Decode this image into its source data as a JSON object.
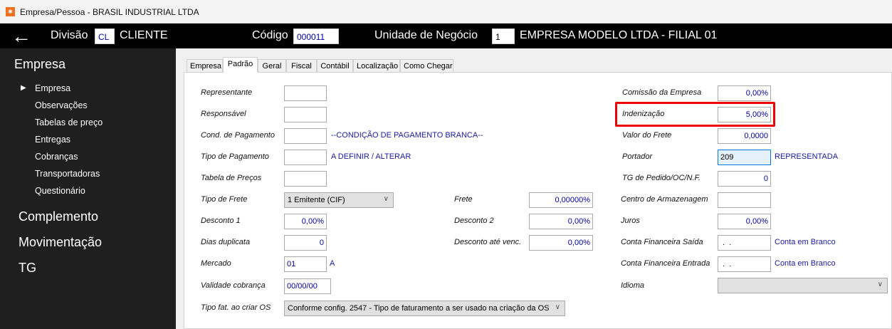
{
  "window": {
    "title": "Empresa/Pessoa - BRASIL INDUSTRIAL  LTDA"
  },
  "header": {
    "divisao_label": "Divisão",
    "divisao_code": "CL",
    "divisao_name": "CLIENTE",
    "codigo_label": "Código",
    "codigo_value": "000011",
    "unidade_label": "Unidade de Negócio",
    "unidade_code": "1",
    "unidade_name": "EMPRESA MODELO LTDA - FILIAL 01"
  },
  "sidebar": {
    "section": "Empresa",
    "items": [
      {
        "label": "Empresa",
        "active": true
      },
      {
        "label": "Observações"
      },
      {
        "label": "Tabelas de preço"
      },
      {
        "label": "Entregas"
      },
      {
        "label": "Cobranças"
      },
      {
        "label": "Transportadoras"
      },
      {
        "label": "Questionário"
      }
    ],
    "sections": [
      "Complemento",
      "Movimentação",
      "TG"
    ]
  },
  "tabs": [
    "Empresa",
    "Padrão",
    "Geral",
    "Fiscal",
    "Contábil",
    "Localização",
    "Como Chegar"
  ],
  "active_tab": "Padrão",
  "form": {
    "left": [
      {
        "label": "Representante",
        "value": ""
      },
      {
        "label": "Responsável",
        "value": ""
      },
      {
        "label": "Cond. de Pagamento",
        "value": "",
        "desc": "--CONDIÇÃO DE PAGAMENTO BRANCA--"
      },
      {
        "label": "Tipo de Pagamento",
        "value": "",
        "desc": "A DEFINIR / ALTERAR"
      },
      {
        "label": "Tabela de Preços",
        "value": ""
      },
      {
        "label": "Tipo de Frete",
        "value": "1 Emitente (CIF)"
      },
      {
        "label": "Desconto 1",
        "value": "0,00%"
      },
      {
        "label": "Dias duplicata",
        "value": "0"
      },
      {
        "label": "Mercado",
        "value": "01",
        "desc": "A"
      },
      {
        "label": "Validade cobrança",
        "value": "00/00/00"
      },
      {
        "label": "Tipo fat. ao criar OS",
        "value": "Conforme config. 2547 - Tipo de faturamento a ser usado na criação da OS"
      }
    ],
    "middle": [
      {
        "label": "Frete",
        "value": "0,00000%"
      },
      {
        "label": "Desconto 2",
        "value": "0,00%"
      },
      {
        "label": "Desconto até venc.",
        "value": "0,00%"
      }
    ],
    "right": [
      {
        "label": "Comissão da Empresa",
        "value": "0,00%"
      },
      {
        "label": "Indenização",
        "value": "5,00%"
      },
      {
        "label": "Valor do Frete",
        "value": "0,0000"
      },
      {
        "label": "Portador",
        "value": "209",
        "desc": "REPRESENTADA"
      },
      {
        "label": "TG de Pedido/OC/N.F.",
        "value": "0"
      },
      {
        "label": "Centro de Armazenagem",
        "value": ""
      },
      {
        "label": "Juros",
        "value": "0,00%"
      },
      {
        "label": "Conta Financeira Saída",
        "value": " .  .",
        "desc": "Conta em Branco"
      },
      {
        "label": "Conta Financeira Entrada",
        "value": " .  .",
        "desc": "Conta em Branco"
      },
      {
        "label": "Idioma",
        "value": ""
      }
    ]
  },
  "colors": {
    "highlight": "#ee0000",
    "header_bg": "#000000",
    "sidebar_bg": "#1f1f1f",
    "value_text": "#0000a0"
  }
}
